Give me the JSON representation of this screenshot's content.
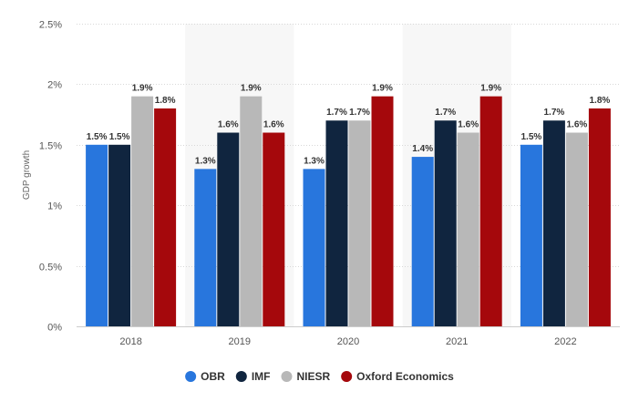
{
  "chart_data": {
    "type": "bar",
    "categories": [
      "2018",
      "2019",
      "2020",
      "2021",
      "2022"
    ],
    "series": [
      {
        "name": "OBR",
        "color": "#2876dd",
        "values": [
          1.5,
          1.3,
          1.3,
          1.4,
          1.5
        ],
        "labels": [
          "1.5%",
          "1.3%",
          "1.3%",
          "1.4%",
          "1.5%"
        ]
      },
      {
        "name": "IMF",
        "color": "#10253f",
        "values": [
          1.5,
          1.6,
          1.7,
          1.7,
          1.7
        ],
        "labels": [
          "1.5%",
          "1.6%",
          "1.7%",
          "1.7%",
          "1.7%"
        ]
      },
      {
        "name": "NIESR",
        "color": "#b8b8b8",
        "values": [
          1.9,
          1.9,
          1.7,
          1.6,
          1.6
        ],
        "labels": [
          "1.9%",
          "1.9%",
          "1.7%",
          "1.6%",
          "1.6%"
        ]
      },
      {
        "name": "Oxford Economics",
        "color": "#a5080c",
        "values": [
          1.8,
          1.6,
          1.9,
          1.9,
          1.8
        ],
        "labels": [
          "1.8%",
          "1.6%",
          "1.9%",
          "1.9%",
          "1.8%"
        ]
      }
    ],
    "ylabel": "GDP growth",
    "ylim": [
      0,
      2.5
    ],
    "yticks": [
      0,
      0.5,
      1,
      1.5,
      2,
      2.5
    ],
    "ytick_labels": [
      "0%",
      "0.5%",
      "1%",
      "1.5%",
      "2%",
      "2.5%"
    ],
    "grid": true,
    "legend": "bottom"
  }
}
